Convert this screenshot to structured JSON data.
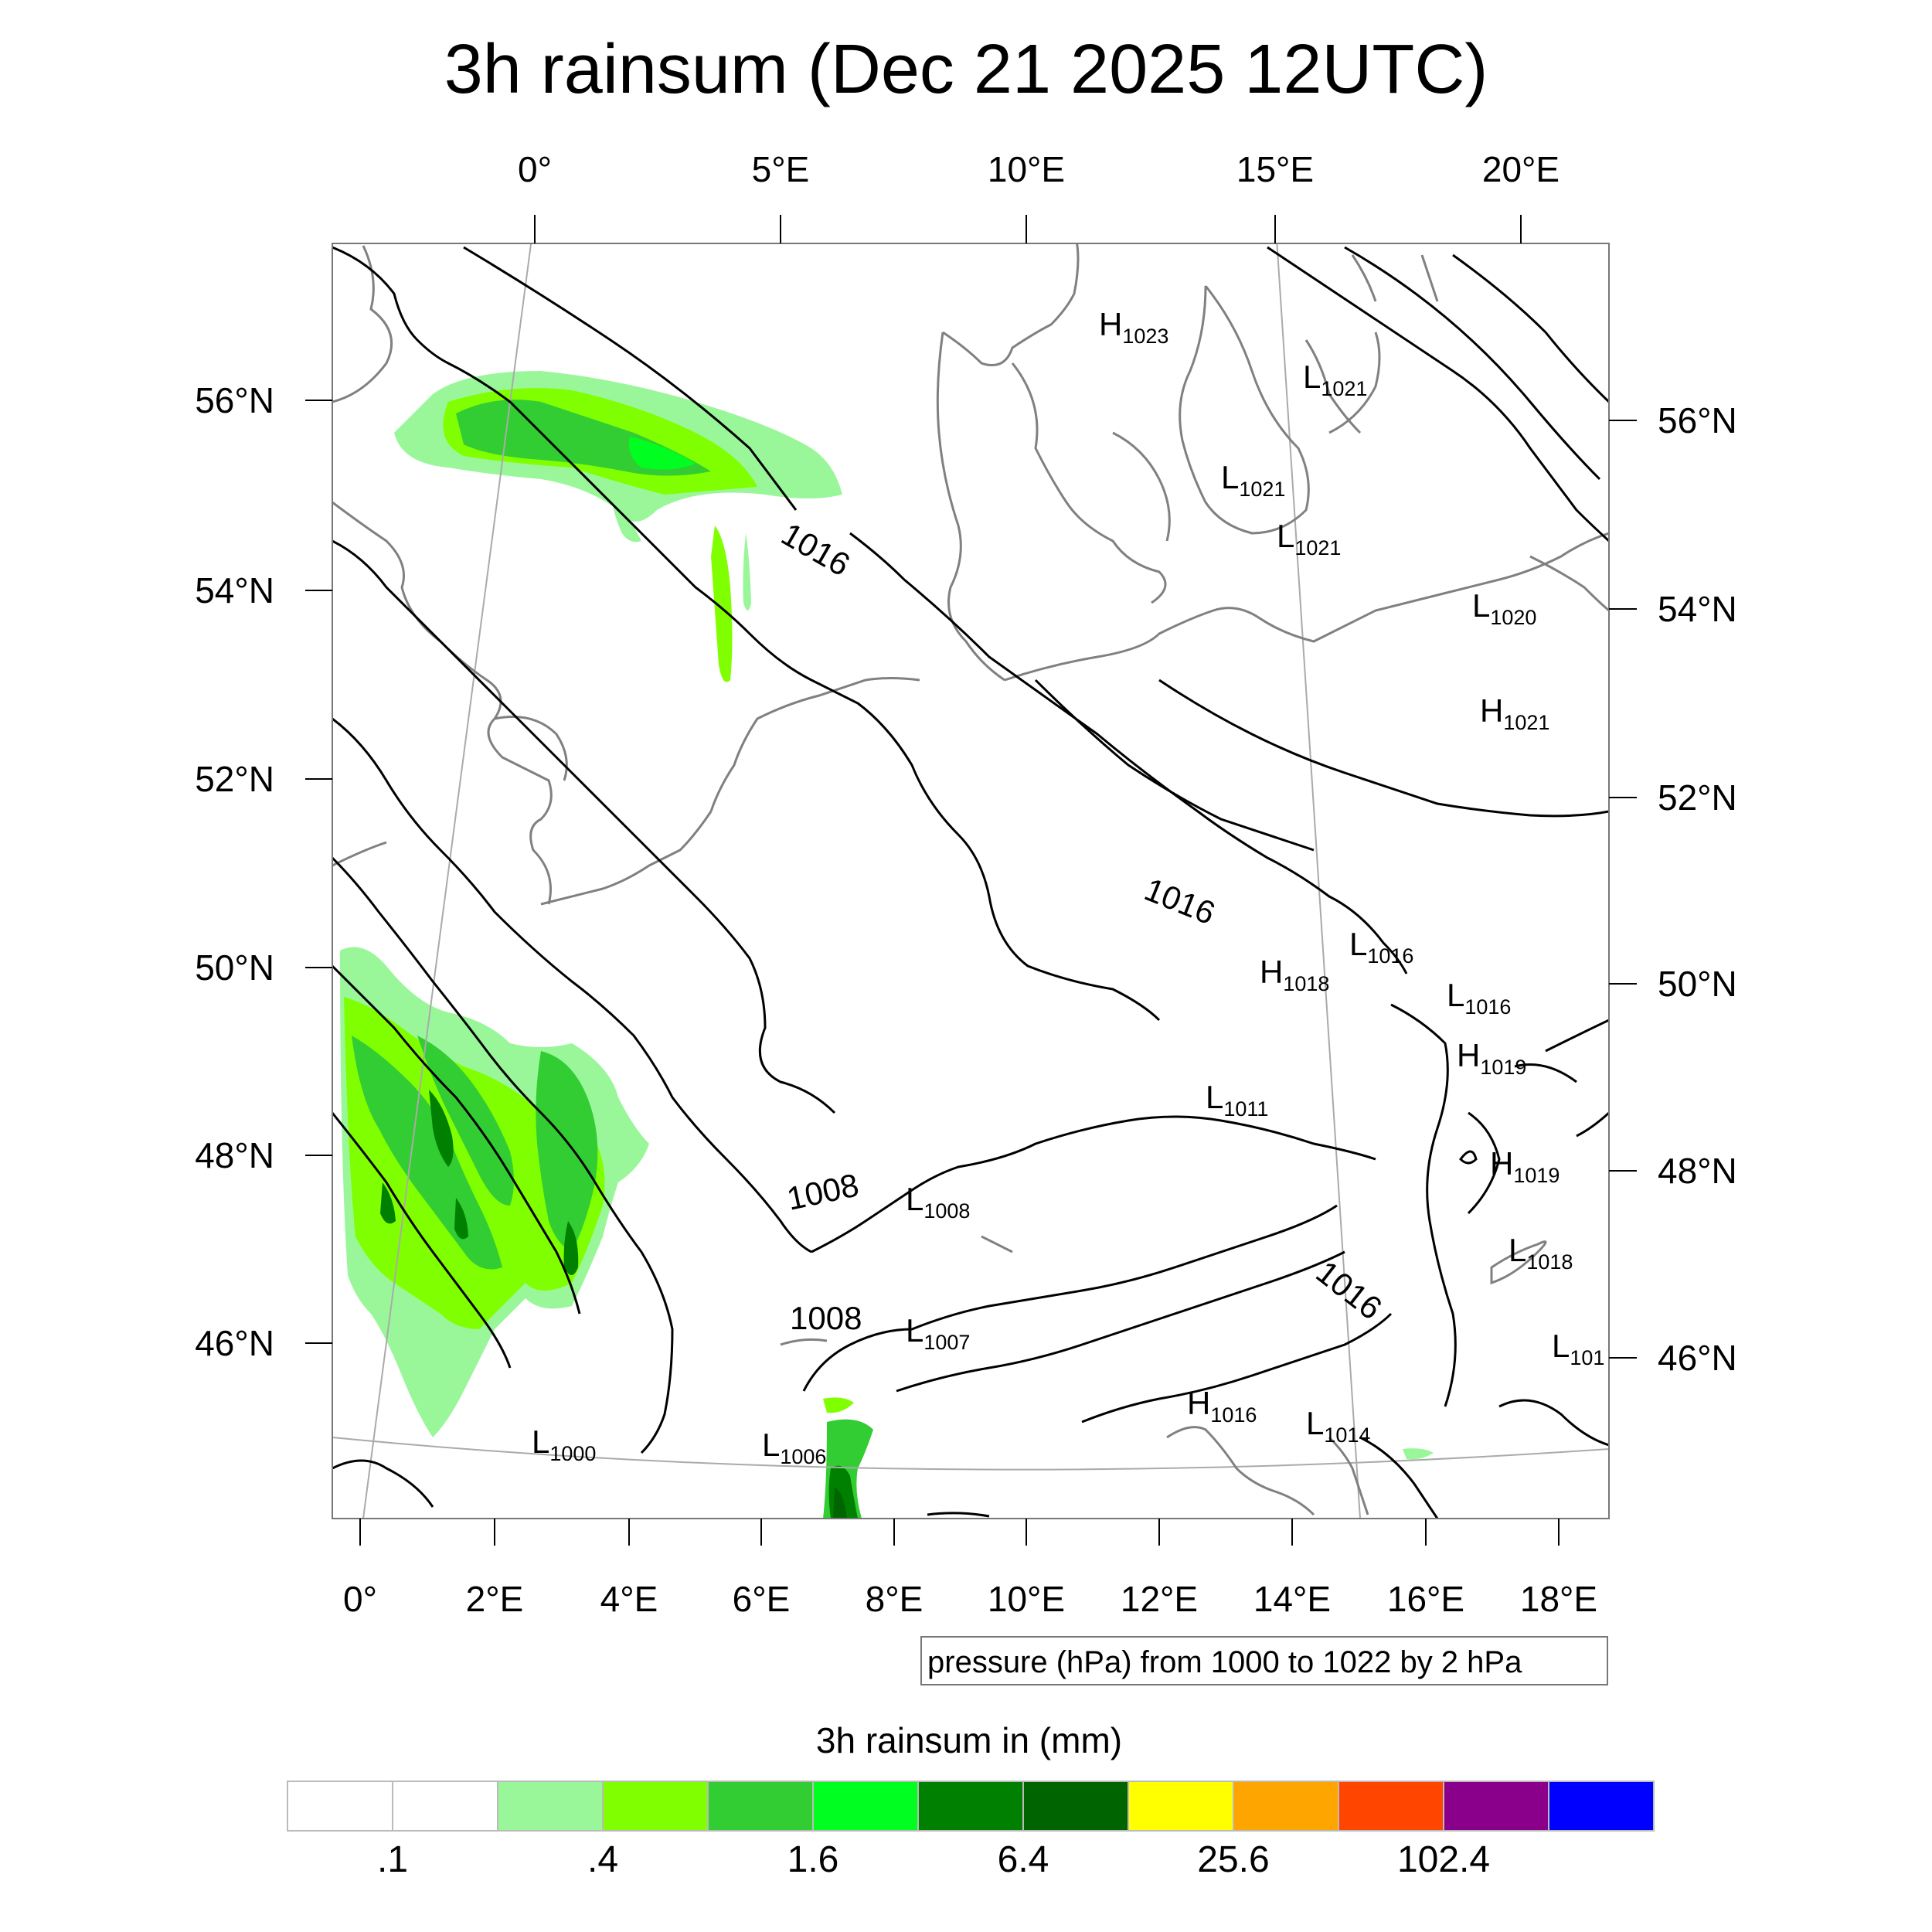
{
  "title": "3h rainsum (Dec 21 2025 12UTC)",
  "top_lon_labels": [
    "0°",
    "5°E",
    "10°E",
    "15°E",
    "20°E"
  ],
  "bottom_lon_labels": [
    "0°",
    "2°E",
    "4°E",
    "6°E",
    "8°E",
    "10°E",
    "12°E",
    "14°E",
    "16°E",
    "18°E"
  ],
  "left_lat_labels": [
    "56°N",
    "54°N",
    "52°N",
    "50°N",
    "48°N",
    "46°N"
  ],
  "right_lat_labels": [
    "56°N",
    "54°N",
    "52°N",
    "50°N",
    "48°N",
    "46°N"
  ],
  "pressure_centers": [
    {
      "letter": "H",
      "value": "1023"
    },
    {
      "letter": "L",
      "value": "1021"
    },
    {
      "letter": "L",
      "value": "1021"
    },
    {
      "letter": "L",
      "value": "1021"
    },
    {
      "letter": "L",
      "value": "1020"
    },
    {
      "letter": "H",
      "value": "1021"
    },
    {
      "letter": "H",
      "value": "1018"
    },
    {
      "letter": "L",
      "value": "1016"
    },
    {
      "letter": "L",
      "value": "1016"
    },
    {
      "letter": "H",
      "value": "1019"
    },
    {
      "letter": "L",
      "value": "1011"
    },
    {
      "letter": "H",
      "value": "1019"
    },
    {
      "letter": "L",
      "value": "1008"
    },
    {
      "letter": "L",
      "value": "1018"
    },
    {
      "letter": "L",
      "value": "1007"
    },
    {
      "letter": "H",
      "value": "1016"
    },
    {
      "letter": "L",
      "value": "1014"
    },
    {
      "letter": "L",
      "value": "1000"
    },
    {
      "letter": "L",
      "value": "1006"
    },
    {
      "letter": "L",
      "value": "101"
    }
  ],
  "contour_labels": [
    "1016",
    "1016",
    "1016",
    "1008",
    "1008"
  ],
  "contour_note": "pressure (hPa) from 1000 to 1022 by 2 hPa",
  "colorbar": {
    "title": "3h rainsum in (mm)",
    "colors": [
      "#ffffff",
      "#ffffff",
      "#99f799",
      "#7fff00",
      "#32cd32",
      "#00ff20",
      "#008000",
      "#006400",
      "#ffff00",
      "#ffa500",
      "#ff4500",
      "#8b008b",
      "#0000ff"
    ],
    "labels": [
      ".1",
      ".4",
      "1.6",
      "6.4",
      "25.6",
      "102.4"
    ]
  }
}
